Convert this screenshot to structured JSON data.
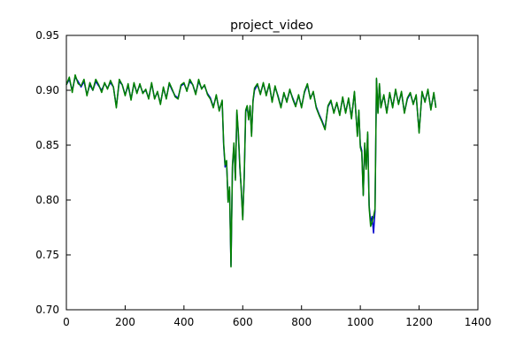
{
  "chart_data": {
    "type": "line",
    "title": "project_video",
    "xlabel": "",
    "ylabel": "",
    "xlim": [
      0,
      1400
    ],
    "ylim": [
      0.7,
      0.95
    ],
    "xticks": [
      0,
      200,
      400,
      600,
      800,
      1000,
      1200,
      1400
    ],
    "yticks": [
      0.7,
      0.75,
      0.8,
      0.85,
      0.9,
      0.95
    ],
    "xtick_labels": [
      "0",
      "200",
      "400",
      "600",
      "800",
      "1000",
      "1200",
      "1400"
    ],
    "ytick_labels": [
      "0.70",
      "0.75",
      "0.80",
      "0.85",
      "0.90",
      "0.95"
    ],
    "grid": false,
    "colors": {
      "series_a": "#0000cc",
      "series_b": "#008000",
      "frame": "#000000"
    },
    "series": [
      {
        "color": "#0000cc",
        "points": [
          [
            0,
            0.905
          ],
          [
            10,
            0.91
          ],
          [
            20,
            0.9
          ],
          [
            30,
            0.912
          ],
          [
            40,
            0.908
          ],
          [
            50,
            0.903
          ],
          [
            60,
            0.908
          ],
          [
            70,
            0.896
          ],
          [
            80,
            0.905
          ],
          [
            90,
            0.9
          ],
          [
            100,
            0.908
          ],
          [
            110,
            0.904
          ],
          [
            120,
            0.9
          ],
          [
            130,
            0.906
          ],
          [
            140,
            0.902
          ],
          [
            150,
            0.907
          ],
          [
            160,
            0.903
          ],
          [
            170,
            0.885
          ],
          [
            180,
            0.908
          ],
          [
            190,
            0.905
          ],
          [
            200,
            0.896
          ],
          [
            210,
            0.904
          ],
          [
            220,
            0.892
          ],
          [
            230,
            0.906
          ],
          [
            240,
            0.898
          ],
          [
            250,
            0.905
          ],
          [
            260,
            0.898
          ],
          [
            270,
            0.9
          ],
          [
            280,
            0.893
          ],
          [
            290,
            0.906
          ],
          [
            300,
            0.893
          ],
          [
            310,
            0.898
          ],
          [
            320,
            0.888
          ],
          [
            330,
            0.902
          ],
          [
            340,
            0.893
          ],
          [
            350,
            0.906
          ],
          [
            360,
            0.9
          ],
          [
            370,
            0.895
          ],
          [
            380,
            0.893
          ],
          [
            390,
            0.904
          ],
          [
            400,
            0.906
          ],
          [
            410,
            0.9
          ],
          [
            420,
            0.908
          ],
          [
            430,
            0.905
          ],
          [
            440,
            0.897
          ],
          [
            450,
            0.908
          ],
          [
            460,
            0.902
          ],
          [
            470,
            0.904
          ],
          [
            480,
            0.897
          ],
          [
            490,
            0.893
          ],
          [
            500,
            0.885
          ],
          [
            510,
            0.895
          ],
          [
            520,
            0.882
          ],
          [
            530,
            0.89
          ],
          [
            535,
            0.85
          ],
          [
            540,
            0.83
          ],
          [
            545,
            0.835
          ],
          [
            550,
            0.8
          ],
          [
            555,
            0.81
          ],
          [
            560,
            0.74
          ],
          [
            565,
            0.83
          ],
          [
            570,
            0.85
          ],
          [
            575,
            0.82
          ],
          [
            580,
            0.88
          ],
          [
            585,
            0.86
          ],
          [
            590,
            0.83
          ],
          [
            595,
            0.81
          ],
          [
            600,
            0.784
          ],
          [
            605,
            0.82
          ],
          [
            610,
            0.88
          ],
          [
            615,
            0.885
          ],
          [
            620,
            0.875
          ],
          [
            625,
            0.885
          ],
          [
            630,
            0.86
          ],
          [
            635,
            0.89
          ],
          [
            640,
            0.9
          ],
          [
            650,
            0.905
          ],
          [
            660,
            0.897
          ],
          [
            670,
            0.906
          ],
          [
            680,
            0.896
          ],
          [
            690,
            0.905
          ],
          [
            700,
            0.89
          ],
          [
            710,
            0.903
          ],
          [
            720,
            0.895
          ],
          [
            730,
            0.885
          ],
          [
            740,
            0.897
          ],
          [
            750,
            0.89
          ],
          [
            760,
            0.9
          ],
          [
            770,
            0.893
          ],
          [
            780,
            0.886
          ],
          [
            790,
            0.895
          ],
          [
            800,
            0.885
          ],
          [
            810,
            0.898
          ],
          [
            820,
            0.905
          ],
          [
            830,
            0.893
          ],
          [
            840,
            0.898
          ],
          [
            850,
            0.885
          ],
          [
            860,
            0.878
          ],
          [
            870,
            0.872
          ],
          [
            880,
            0.865
          ],
          [
            890,
            0.885
          ],
          [
            900,
            0.89
          ],
          [
            910,
            0.88
          ],
          [
            920,
            0.888
          ],
          [
            930,
            0.878
          ],
          [
            940,
            0.893
          ],
          [
            950,
            0.88
          ],
          [
            960,
            0.892
          ],
          [
            970,
            0.875
          ],
          [
            980,
            0.898
          ],
          [
            990,
            0.86
          ],
          [
            995,
            0.88
          ],
          [
            1000,
            0.85
          ],
          [
            1005,
            0.845
          ],
          [
            1010,
            0.805
          ],
          [
            1015,
            0.85
          ],
          [
            1020,
            0.83
          ],
          [
            1025,
            0.86
          ],
          [
            1030,
            0.795
          ],
          [
            1035,
            0.78
          ],
          [
            1040,
            0.785
          ],
          [
            1045,
            0.77
          ],
          [
            1050,
            0.79
          ],
          [
            1055,
            0.91
          ],
          [
            1060,
            0.88
          ],
          [
            1065,
            0.905
          ],
          [
            1070,
            0.885
          ],
          [
            1080,
            0.895
          ],
          [
            1090,
            0.88
          ],
          [
            1100,
            0.897
          ],
          [
            1110,
            0.885
          ],
          [
            1120,
            0.9
          ],
          [
            1130,
            0.888
          ],
          [
            1140,
            0.898
          ],
          [
            1150,
            0.88
          ],
          [
            1160,
            0.892
          ],
          [
            1170,
            0.897
          ],
          [
            1180,
            0.888
          ],
          [
            1190,
            0.895
          ],
          [
            1200,
            0.862
          ],
          [
            1210,
            0.898
          ],
          [
            1220,
            0.89
          ],
          [
            1230,
            0.9
          ],
          [
            1240,
            0.883
          ],
          [
            1250,
            0.897
          ],
          [
            1257,
            0.885
          ]
        ]
      },
      {
        "color": "#008000",
        "points": [
          [
            0,
            0.905
          ],
          [
            10,
            0.912
          ],
          [
            20,
            0.898
          ],
          [
            30,
            0.914
          ],
          [
            40,
            0.906
          ],
          [
            50,
            0.904
          ],
          [
            60,
            0.91
          ],
          [
            70,
            0.895
          ],
          [
            80,
            0.907
          ],
          [
            90,
            0.9
          ],
          [
            100,
            0.91
          ],
          [
            110,
            0.905
          ],
          [
            120,
            0.898
          ],
          [
            130,
            0.907
          ],
          [
            140,
            0.901
          ],
          [
            150,
            0.909
          ],
          [
            160,
            0.903
          ],
          [
            170,
            0.884
          ],
          [
            180,
            0.91
          ],
          [
            190,
            0.905
          ],
          [
            200,
            0.895
          ],
          [
            210,
            0.906
          ],
          [
            220,
            0.891
          ],
          [
            230,
            0.907
          ],
          [
            240,
            0.897
          ],
          [
            250,
            0.906
          ],
          [
            260,
            0.897
          ],
          [
            270,
            0.901
          ],
          [
            280,
            0.892
          ],
          [
            290,
            0.907
          ],
          [
            300,
            0.892
          ],
          [
            310,
            0.899
          ],
          [
            320,
            0.887
          ],
          [
            330,
            0.903
          ],
          [
            340,
            0.892
          ],
          [
            350,
            0.907
          ],
          [
            360,
            0.901
          ],
          [
            370,
            0.894
          ],
          [
            380,
            0.892
          ],
          [
            390,
            0.905
          ],
          [
            400,
            0.907
          ],
          [
            410,
            0.899
          ],
          [
            420,
            0.91
          ],
          [
            430,
            0.905
          ],
          [
            440,
            0.896
          ],
          [
            450,
            0.91
          ],
          [
            460,
            0.901
          ],
          [
            470,
            0.905
          ],
          [
            480,
            0.896
          ],
          [
            490,
            0.892
          ],
          [
            500,
            0.884
          ],
          [
            510,
            0.896
          ],
          [
            520,
            0.881
          ],
          [
            530,
            0.891
          ],
          [
            535,
            0.852
          ],
          [
            540,
            0.832
          ],
          [
            545,
            0.836
          ],
          [
            550,
            0.798
          ],
          [
            555,
            0.812
          ],
          [
            560,
            0.739
          ],
          [
            565,
            0.832
          ],
          [
            570,
            0.852
          ],
          [
            575,
            0.818
          ],
          [
            580,
            0.882
          ],
          [
            585,
            0.862
          ],
          [
            590,
            0.832
          ],
          [
            595,
            0.808
          ],
          [
            600,
            0.782
          ],
          [
            605,
            0.822
          ],
          [
            610,
            0.882
          ],
          [
            615,
            0.886
          ],
          [
            620,
            0.873
          ],
          [
            625,
            0.886
          ],
          [
            630,
            0.858
          ],
          [
            635,
            0.891
          ],
          [
            640,
            0.902
          ],
          [
            650,
            0.906
          ],
          [
            660,
            0.896
          ],
          [
            670,
            0.907
          ],
          [
            680,
            0.895
          ],
          [
            690,
            0.906
          ],
          [
            700,
            0.889
          ],
          [
            710,
            0.904
          ],
          [
            720,
            0.894
          ],
          [
            730,
            0.884
          ],
          [
            740,
            0.898
          ],
          [
            750,
            0.889
          ],
          [
            760,
            0.901
          ],
          [
            770,
            0.892
          ],
          [
            780,
            0.885
          ],
          [
            790,
            0.896
          ],
          [
            800,
            0.884
          ],
          [
            810,
            0.899
          ],
          [
            820,
            0.906
          ],
          [
            830,
            0.892
          ],
          [
            840,
            0.899
          ],
          [
            850,
            0.884
          ],
          [
            860,
            0.877
          ],
          [
            870,
            0.871
          ],
          [
            880,
            0.864
          ],
          [
            890,
            0.886
          ],
          [
            900,
            0.891
          ],
          [
            910,
            0.879
          ],
          [
            920,
            0.889
          ],
          [
            930,
            0.877
          ],
          [
            940,
            0.894
          ],
          [
            950,
            0.879
          ],
          [
            960,
            0.893
          ],
          [
            970,
            0.874
          ],
          [
            980,
            0.899
          ],
          [
            990,
            0.858
          ],
          [
            995,
            0.882
          ],
          [
            1000,
            0.848
          ],
          [
            1005,
            0.843
          ],
          [
            1010,
            0.804
          ],
          [
            1015,
            0.852
          ],
          [
            1020,
            0.828
          ],
          [
            1025,
            0.862
          ],
          [
            1030,
            0.793
          ],
          [
            1035,
            0.776
          ],
          [
            1040,
            0.78
          ],
          [
            1045,
            0.785
          ],
          [
            1050,
            0.792
          ],
          [
            1055,
            0.911
          ],
          [
            1060,
            0.879
          ],
          [
            1065,
            0.906
          ],
          [
            1070,
            0.884
          ],
          [
            1080,
            0.896
          ],
          [
            1090,
            0.879
          ],
          [
            1100,
            0.898
          ],
          [
            1110,
            0.884
          ],
          [
            1120,
            0.901
          ],
          [
            1130,
            0.887
          ],
          [
            1140,
            0.899
          ],
          [
            1150,
            0.879
          ],
          [
            1160,
            0.893
          ],
          [
            1170,
            0.898
          ],
          [
            1180,
            0.887
          ],
          [
            1190,
            0.896
          ],
          [
            1200,
            0.861
          ],
          [
            1210,
            0.899
          ],
          [
            1220,
            0.889
          ],
          [
            1230,
            0.901
          ],
          [
            1240,
            0.882
          ],
          [
            1250,
            0.898
          ],
          [
            1257,
            0.884
          ]
        ]
      }
    ]
  }
}
